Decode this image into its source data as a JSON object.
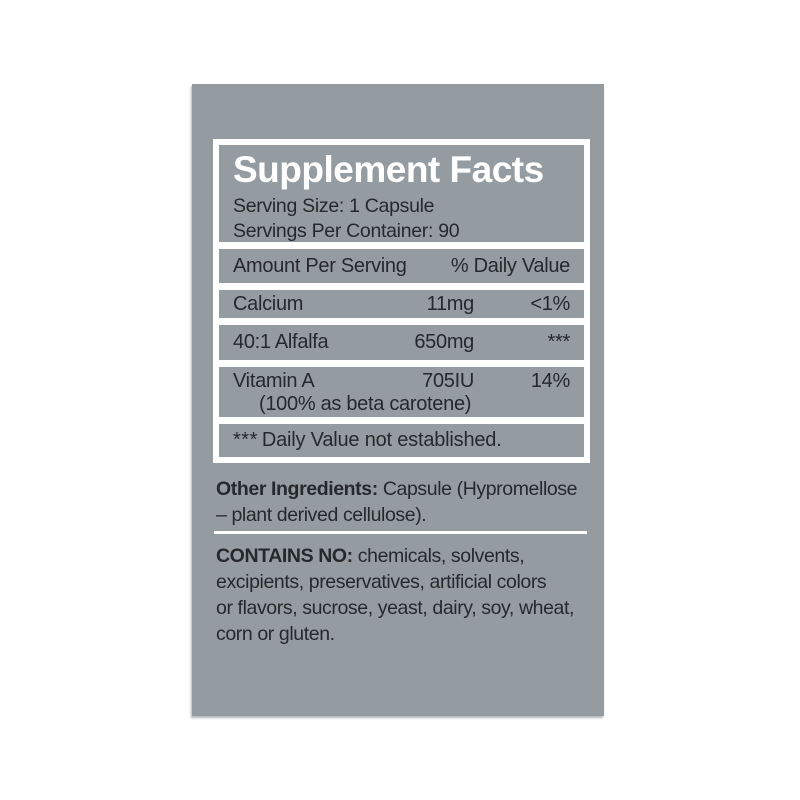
{
  "label": {
    "title": "Supplement Facts",
    "serving_size": "Serving Size: 1 Capsule",
    "servings_per_container": "Servings Per Container: 90",
    "columns": {
      "amount_header": "Amount Per Serving",
      "dv_header": "% Daily Value"
    },
    "nutrients": [
      {
        "name": "Calcium",
        "amount": "11mg",
        "dv": "<1%"
      },
      {
        "name": "40:1 Alfalfa",
        "amount": "650mg",
        "dv": "***"
      },
      {
        "name": "Vitamin A",
        "amount": "705IU",
        "dv": "14%",
        "note": "(100% as beta carotene)"
      }
    ],
    "footnote": {
      "stars": "***",
      "text": "Daily Value not established."
    },
    "other_ingredients": {
      "label": "Other Ingredients:",
      "rest_line1": " Capsule (Hypromellose",
      "line2": "– plant derived cellulose)."
    },
    "contains_no": {
      "label": "CONTAINS NO:",
      "rest_line1": " chemicals, solvents,",
      "line2": "excipients, preservatives, artificial colors",
      "line3": "or flavors, sucrose, yeast, dairy, soy, wheat,",
      "line4": "corn or gluten."
    },
    "colors": {
      "panel_gray": "#949CA2",
      "text_dark": "#26292B",
      "frame_white": "#FFFFFF"
    }
  }
}
